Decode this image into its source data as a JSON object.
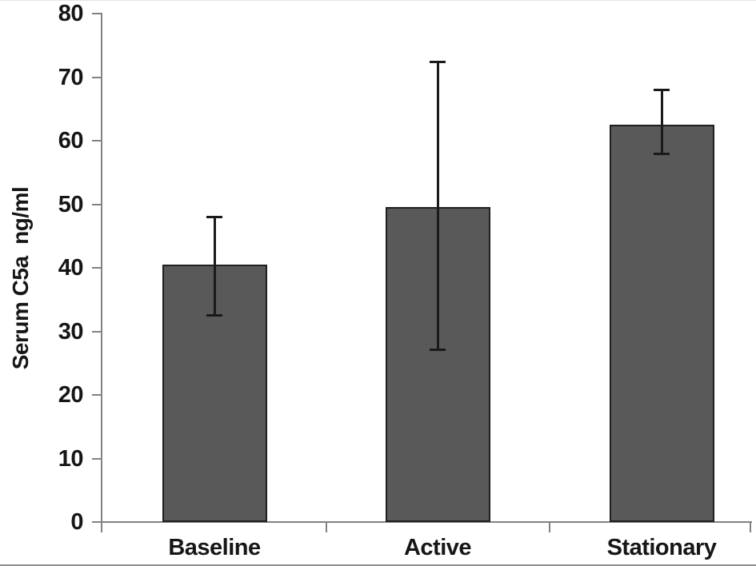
{
  "chart_data": {
    "type": "bar",
    "title": "",
    "xlabel": "",
    "ylabel": "Serum C5a  ng/ml",
    "ylim": [
      0,
      80
    ],
    "ytick_interval": 10,
    "yticks": [
      0,
      10,
      20,
      30,
      40,
      50,
      60,
      70,
      80
    ],
    "categories": [
      "Baseline",
      "Active",
      "Stationary"
    ],
    "values": [
      40.5,
      49.5,
      62.5
    ],
    "error_low": [
      32.5,
      27.0,
      57.8
    ],
    "error_high": [
      48.0,
      72.5,
      68.0
    ],
    "grid": false,
    "legend": false,
    "legend_position": "none",
    "colors": {
      "bar_fill": "#595959",
      "bar_border": "#1f1f1f",
      "error_bar": "#1a1a1a",
      "axis_line": "#828282",
      "text": "#161616",
      "background": "#ffffff"
    }
  }
}
